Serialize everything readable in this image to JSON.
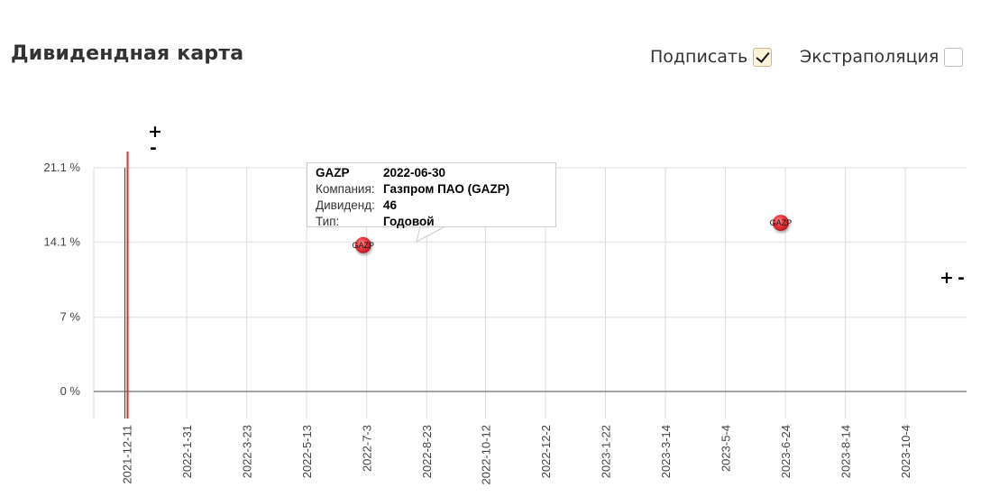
{
  "header": {
    "title": "Дивидендная карта",
    "options": [
      {
        "label": "Подписать",
        "checked": true
      },
      {
        "label": "Экстраполяция",
        "checked": false
      }
    ]
  },
  "zoom": {
    "plus": "+",
    "minus": "-"
  },
  "colors": {
    "point": "#e8333a",
    "today_line": "#e03030",
    "grid": "#dddddd",
    "zero_line": "#888888"
  },
  "chart_data": {
    "type": "scatter",
    "title": "",
    "xlabel": "",
    "ylabel": "",
    "ylim": [
      -2,
      21.1
    ],
    "y_ticks": [
      "0 %",
      "7 %",
      "14.1 %",
      "21.1 %"
    ],
    "y_tick_values": [
      0,
      7,
      14.1,
      21.1
    ],
    "x_ticks": [
      "2021-12-11",
      "2022-1-31",
      "2022-3-23",
      "2022-5-13",
      "2022-7-3",
      "2022-8-23",
      "2022-10-12",
      "2022-12-2",
      "2023-1-22",
      "2023-3-14",
      "2023-5-4",
      "2023-6-24",
      "2023-8-14",
      "2023-10-4"
    ],
    "xlim": [
      "2021-11-13",
      "2023-11-25"
    ],
    "current_date": "2021-12-11",
    "grid": true,
    "points": [
      {
        "label": "GAZP",
        "x": "2022-06-30",
        "y": 13.8
      },
      {
        "label": "GAZP",
        "x": "2023-06-20",
        "y": 15.9
      }
    ]
  },
  "tooltip": {
    "ticker": "GAZP",
    "date": "2022-06-30",
    "rows": [
      {
        "key": "Компания:",
        "value": "Газпром ПАО (GAZP)"
      },
      {
        "key": "Дивиденд:",
        "value": "46"
      },
      {
        "key": "Тип:",
        "value": "Годовой"
      }
    ]
  }
}
